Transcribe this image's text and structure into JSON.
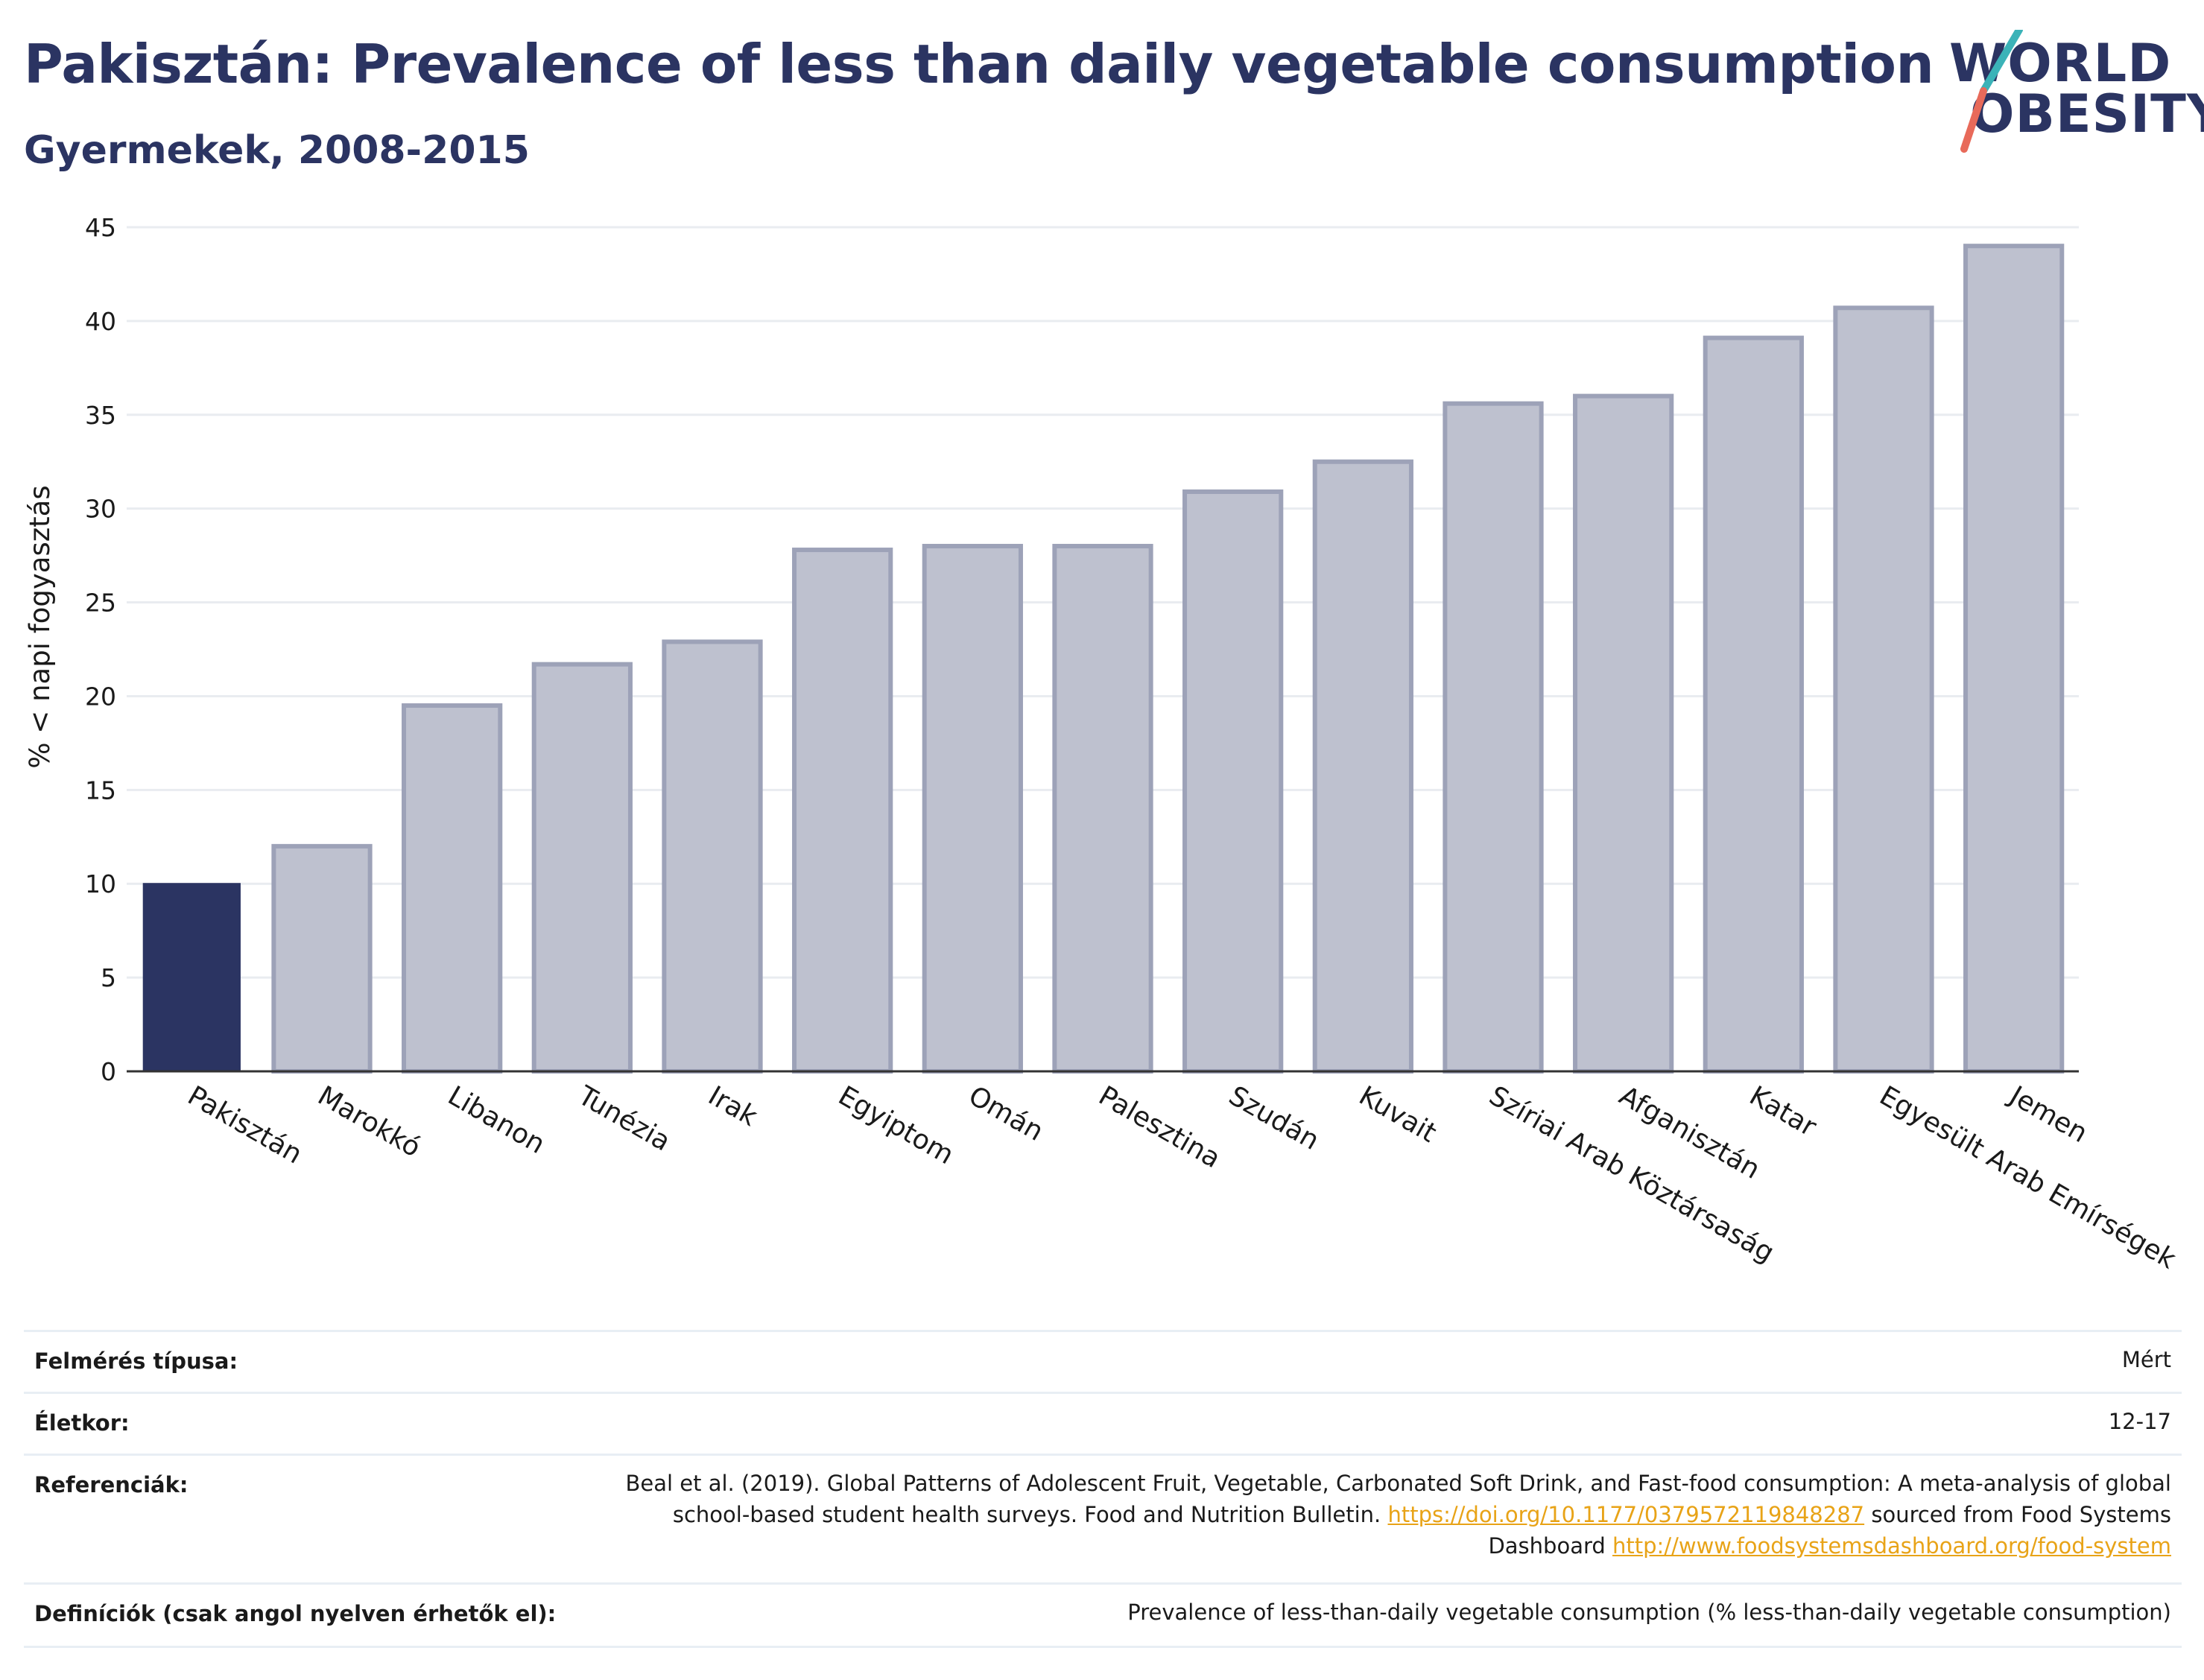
{
  "header": {
    "title": "Pakisztán: Prevalence of less than daily vegetable consumption",
    "subtitle": "Gyermekek, 2008-2015"
  },
  "logo": {
    "line1": "WORLD",
    "line2": "OBESITY",
    "colors": {
      "text": "#2b3462",
      "slash_top": "#3bb3b8",
      "slash_bottom": "#e86a5a"
    }
  },
  "chart_data": {
    "type": "bar",
    "ylabel": "% < napi fogyasztás",
    "xlabel": "",
    "ylim": [
      0,
      45
    ],
    "yticks": [
      0,
      5,
      10,
      15,
      20,
      25,
      30,
      35,
      40,
      45
    ],
    "grid": true,
    "categories": [
      "Pakisztán",
      "Marokkó",
      "Libanon",
      "Tunézia",
      "Irak",
      "Egyiptom",
      "Omán",
      "Palesztina",
      "Szudán",
      "Kuvait",
      "Szíriai Arab Köztársaság",
      "Afganisztán",
      "Katar",
      "Egyesült Arab Emírségek",
      "Jemen"
    ],
    "values": [
      10,
      12,
      19.5,
      21.7,
      22.9,
      27.8,
      28,
      28,
      30.9,
      32.5,
      35.6,
      36,
      39.1,
      40.7,
      44
    ],
    "highlight": "Pakisztán",
    "colors": {
      "highlight": "#2b3462",
      "other_fill": "#bec1cf",
      "other_stroke": "#9da2b8",
      "grid": "#e9ecf0",
      "axis": "#333333"
    }
  },
  "info": {
    "rows": [
      {
        "label": "Felmérés típusa:",
        "value": "Mért"
      },
      {
        "label": "Életkor:",
        "value": "12-17"
      },
      {
        "label": "Referenciák:",
        "value_part1": "Beal et al. (2019). Global Patterns of Adolescent Fruit, Vegetable, Carbonated Soft Drink, and Fast-food consumption: A meta-analysis of global school-based student health surveys. Food and Nutrition Bulletin.",
        "link1": "https://doi.org/10.1177/0379572119848287",
        "value_part2": "sourced from Food Systems Dashboard",
        "link2": "http://www.foodsystemsdashboard.org/food-system"
      },
      {
        "label": "Definíciók (csak angol nyelven érhetők el):",
        "value": "Prevalence of less-than-daily vegetable consumption (% less-than-daily vegetable consumption)"
      }
    ]
  }
}
